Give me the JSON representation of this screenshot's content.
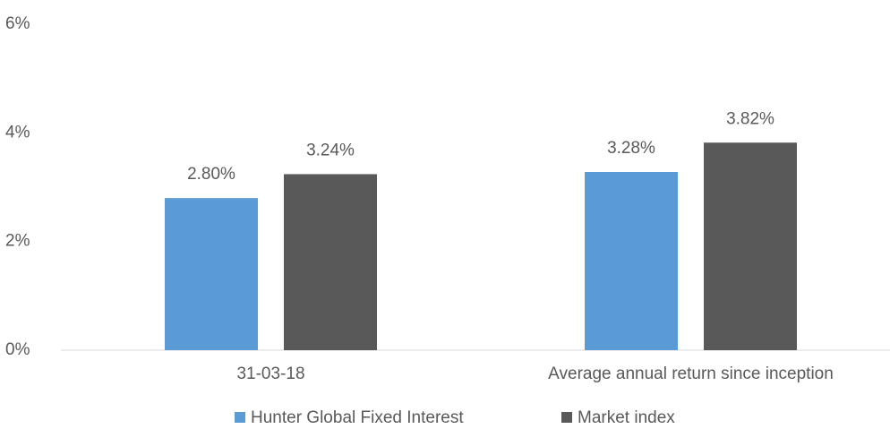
{
  "chart_data": {
    "type": "bar",
    "categories": [
      "31-03-18",
      "Average annual return since inception"
    ],
    "series": [
      {
        "name": "Hunter Global Fixed Interest",
        "color": "#5b9bd5",
        "values": [
          2.8,
          3.28
        ],
        "value_labels": [
          "2.80%",
          "3.28%"
        ]
      },
      {
        "name": "Market index",
        "color": "#595959",
        "values": [
          3.24,
          3.82
        ],
        "value_labels": [
          "3.24%",
          "3.82%"
        ]
      }
    ],
    "ylim": [
      0,
      6
    ],
    "yticks": [
      {
        "value": 0,
        "label": "0%"
      },
      {
        "value": 2,
        "label": "2%"
      },
      {
        "value": 4,
        "label": "4%"
      },
      {
        "value": 6,
        "label": "6%"
      }
    ],
    "legend": "bottom"
  }
}
